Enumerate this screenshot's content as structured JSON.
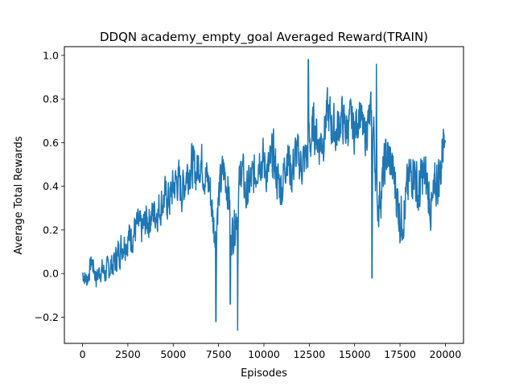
{
  "chart_data": {
    "type": "line",
    "title": "DDQN academy_empty_goal Averaged Reward(TRAIN)",
    "xlabel": "Episodes",
    "ylabel": "Average Total Rewards",
    "xlim": [
      -1000,
      21000
    ],
    "ylim": [
      -0.32,
      1.04
    ],
    "xticks": [
      0,
      2500,
      5000,
      7500,
      10000,
      12500,
      15000,
      17500,
      20000
    ],
    "xtick_labels": [
      "0",
      "2500",
      "5000",
      "7500",
      "10000",
      "12500",
      "15000",
      "17500",
      "20000"
    ],
    "yticks": [
      -0.2,
      0.0,
      0.2,
      0.4,
      0.6,
      0.8,
      1.0
    ],
    "ytick_labels": [
      "−0.2",
      "0.0",
      "0.2",
      "0.4",
      "0.6",
      "0.8",
      "1.0"
    ],
    "grid": false,
    "legend": "none",
    "series": [
      {
        "color": "#1f77b4",
        "x": [
          0,
          250,
          500,
          750,
          1000,
          1250,
          1500,
          1750,
          2000,
          2250,
          2500,
          2750,
          3000,
          3250,
          3500,
          3750,
          4000,
          4250,
          4500,
          4750,
          5000,
          5250,
          5500,
          5750,
          6000,
          6250,
          6500,
          6750,
          7000,
          7250,
          7500,
          7750,
          8000,
          8250,
          8500,
          8750,
          9000,
          9250,
          9500,
          9750,
          10000,
          10250,
          10500,
          10750,
          11000,
          11250,
          11500,
          11750,
          12000,
          12250,
          12500,
          12750,
          13000,
          13250,
          13500,
          13750,
          14000,
          14250,
          14500,
          14750,
          15000,
          15250,
          15500,
          15750,
          16000,
          16250,
          16500,
          16750,
          17000,
          17250,
          17500,
          17750,
          18000,
          18250,
          18500,
          18750,
          19000,
          19250,
          19500,
          19750,
          20000
        ],
        "y": [
          0.0,
          -0.03,
          0.06,
          -0.02,
          0.02,
          0.0,
          0.03,
          0.05,
          0.1,
          0.14,
          0.16,
          0.18,
          0.22,
          0.2,
          0.24,
          0.26,
          0.28,
          0.3,
          0.35,
          0.33,
          0.4,
          0.43,
          0.38,
          0.47,
          0.5,
          0.46,
          0.53,
          0.45,
          0.4,
          0.2,
          0.35,
          0.48,
          0.4,
          0.18,
          0.28,
          0.5,
          0.35,
          0.42,
          0.45,
          0.55,
          0.5,
          0.46,
          0.55,
          0.42,
          0.4,
          0.56,
          0.45,
          0.55,
          0.5,
          0.52,
          0.58,
          0.68,
          0.6,
          0.62,
          0.74,
          0.68,
          0.64,
          0.72,
          0.66,
          0.7,
          0.65,
          0.75,
          0.62,
          0.7,
          0.72,
          0.3,
          0.4,
          0.55,
          0.5,
          0.4,
          0.25,
          0.3,
          0.42,
          0.5,
          0.35,
          0.45,
          0.4,
          0.28,
          0.42,
          0.48,
          0.75
        ],
        "band": [
          0.06,
          0.06,
          0.06,
          0.07,
          0.07,
          0.08,
          0.08,
          0.09,
          0.1,
          0.1,
          0.11,
          0.11,
          0.11,
          0.11,
          0.12,
          0.12,
          0.12,
          0.12,
          0.13,
          0.13,
          0.13,
          0.14,
          0.14,
          0.14,
          0.14,
          0.14,
          0.14,
          0.14,
          0.14,
          0.14,
          0.14,
          0.14,
          0.14,
          0.14,
          0.14,
          0.14,
          0.14,
          0.14,
          0.14,
          0.14,
          0.15,
          0.15,
          0.15,
          0.15,
          0.15,
          0.15,
          0.15,
          0.15,
          0.15,
          0.15,
          0.15,
          0.15,
          0.15,
          0.15,
          0.15,
          0.15,
          0.15,
          0.15,
          0.14,
          0.14,
          0.14,
          0.14,
          0.14,
          0.14,
          0.15,
          0.15,
          0.15,
          0.16,
          0.16,
          0.16,
          0.17,
          0.17,
          0.17,
          0.17,
          0.17,
          0.17,
          0.17,
          0.17,
          0.17,
          0.17,
          0.14
        ],
        "extremes": [
          {
            "x": 7350,
            "y": -0.22
          },
          {
            "x": 8550,
            "y": -0.26
          },
          {
            "x": 8150,
            "y": -0.14
          },
          {
            "x": 12450,
            "y": 0.98
          },
          {
            "x": 15950,
            "y": -0.02
          },
          {
            "x": 16200,
            "y": 0.96
          }
        ]
      }
    ]
  }
}
